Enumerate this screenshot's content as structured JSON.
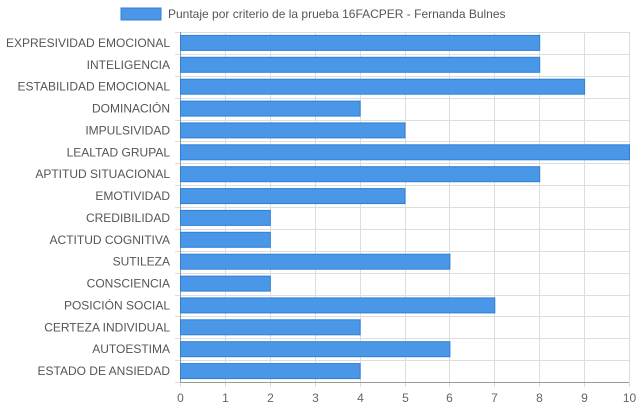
{
  "chart_data": {
    "type": "bar",
    "orientation": "horizontal",
    "categories": [
      "EXPRESIVIDAD EMOCIONAL",
      "INTELIGENCIA",
      "ESTABILIDAD EMOCIONAL",
      "DOMINACIÓN",
      "IMPULSIVIDAD",
      "LEALTAD GRUPAL",
      "APTITUD SITUACIONAL",
      "EMOTIVIDAD",
      "CREDIBILIDAD",
      "ACTITUD COGNITIVA",
      "SUTILEZA",
      "CONSCIENCIA",
      "POSICIÓN SOCIAL",
      "CERTEZA INDIVIDUAL",
      "AUTOESTIMA",
      "ESTADO DE ANSIEDAD"
    ],
    "series": [
      {
        "name": "Puntaje por criterio de la prueba 16FACPER - Fernanda Bulnes",
        "values": [
          8,
          8,
          9,
          4,
          5,
          10,
          8,
          5,
          2,
          2,
          6,
          2,
          7,
          4,
          6,
          4
        ]
      }
    ],
    "xlim": [
      0,
      10
    ],
    "xticks": [
      "0",
      "1",
      "2",
      "3",
      "4",
      "5",
      "6",
      "7",
      "8",
      "9",
      "10"
    ],
    "grid": true,
    "legend_position": "top",
    "colors": {
      "bar_fill": "#4a97e8",
      "bar_stroke": "#2f7fd6",
      "grid": "#dddddd",
      "axis": "#999999",
      "label_text": "#555555",
      "tick_text": "#666666"
    }
  }
}
